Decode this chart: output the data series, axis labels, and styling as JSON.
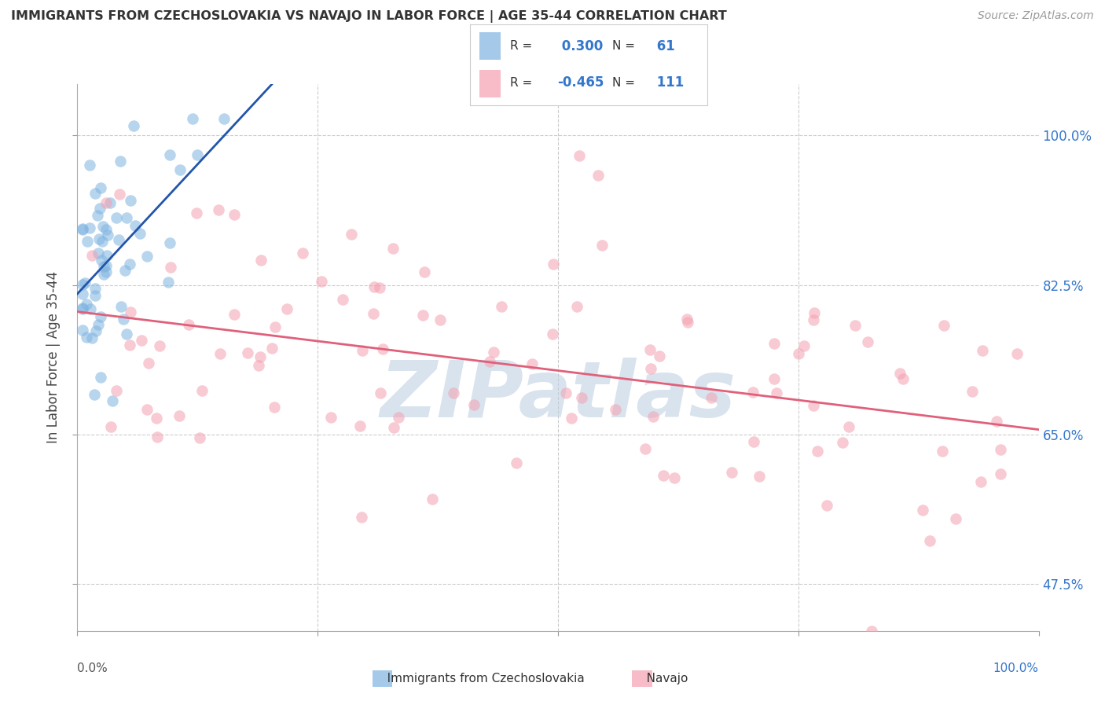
{
  "title": "IMMIGRANTS FROM CZECHOSLOVAKIA VS NAVAJO IN LABOR FORCE | AGE 35-44 CORRELATION CHART",
  "source": "Source: ZipAtlas.com",
  "ylabel": "In Labor Force | Age 35-44",
  "ytick_vals": [
    0.475,
    0.65,
    0.825,
    1.0
  ],
  "ytick_labels": [
    "47.5%",
    "65.0%",
    "82.5%",
    "100.0%"
  ],
  "xlim": [
    0.0,
    1.0
  ],
  "ylim": [
    0.42,
    1.06
  ],
  "legend_blue_label": "Immigrants from Czechoslovakia",
  "legend_pink_label": "Navajo",
  "blue_R": 0.3,
  "blue_N": 61,
  "pink_R": -0.465,
  "pink_N": 111,
  "blue_color": "#7EB3E0",
  "pink_color": "#F4A0B0",
  "blue_line_color": "#2255AA",
  "pink_line_color": "#E0607A",
  "watermark": "ZIPatlas",
  "watermark_color": "#BBCCE0",
  "blue_seed": 7,
  "pink_seed": 42
}
